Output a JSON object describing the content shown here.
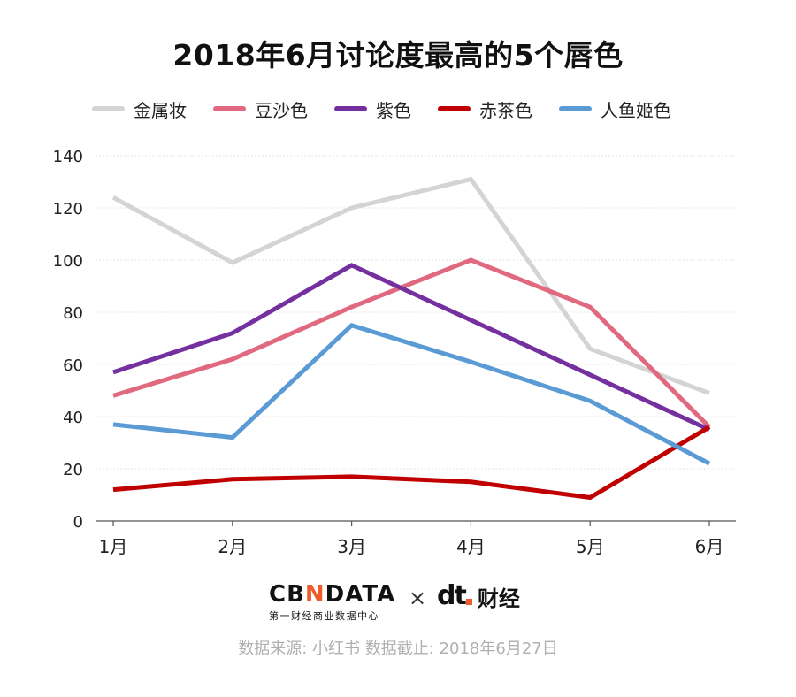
{
  "chart_data": {
    "type": "line",
    "title": "2018年6月讨论度最高的5个唇色",
    "categories": [
      "1月",
      "2月",
      "3月",
      "4月",
      "5月",
      "6月"
    ],
    "ylim": [
      0,
      140
    ],
    "yticks": [
      0,
      20,
      40,
      60,
      80,
      100,
      120,
      140
    ],
    "grid": true,
    "legend_position": "top",
    "series": [
      {
        "name": "金属妆",
        "color": "#d4d4d4",
        "values": [
          124,
          99,
          120,
          131,
          66,
          49
        ]
      },
      {
        "name": "豆沙色",
        "color": "#e0697f",
        "values": [
          48,
          62,
          82,
          100,
          82,
          36
        ]
      },
      {
        "name": "紫色",
        "color": "#7530a0",
        "values": [
          57,
          72,
          98,
          77,
          56,
          35
        ]
      },
      {
        "name": "赤茶色",
        "color": "#c00000",
        "values": [
          12,
          16,
          17,
          15,
          9,
          36
        ]
      },
      {
        "name": "人鱼姬色",
        "color": "#5b9bd5",
        "values": [
          37,
          32,
          75,
          61,
          46,
          22
        ]
      }
    ]
  },
  "brand": {
    "cbn_prefix": "CB",
    "cbn_accent": "N",
    "cbn_suffix": "DATA",
    "cbn_sub": "第一财经商业数据中心",
    "times": "×",
    "dt_mark": "dt",
    "dt_name": "财经"
  },
  "source": "数据来源: 小红书 数据截止: 2018年6月27日"
}
